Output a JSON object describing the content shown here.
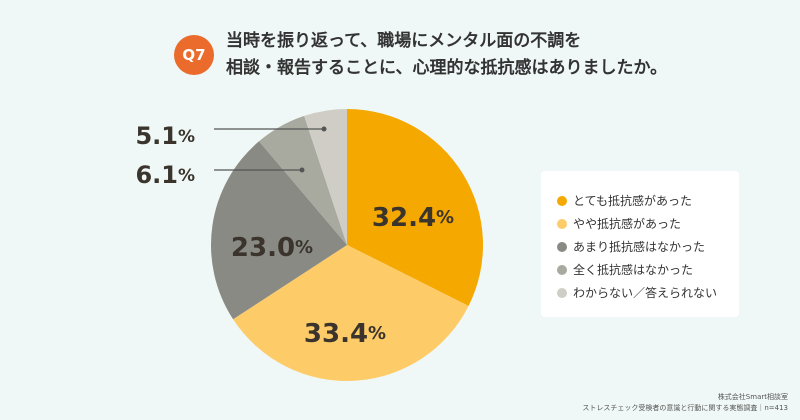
{
  "question": {
    "badge": "Q7",
    "line1": "当時を振り返って、職場にメンタル面の不調を",
    "line2": "相談・報告することに、心理的な抵抗感はありましたか。"
  },
  "chart_data": {
    "type": "pie",
    "title": "当時を振り返って、職場にメンタル面の不調を相談・報告することに、心理的な抵抗感はありましたか。",
    "slices": [
      {
        "label": "とても抵抗感があった",
        "value": 32.4,
        "color": "#f5a800"
      },
      {
        "label": "やや抵抗感があった",
        "value": 33.4,
        "color": "#fecb69"
      },
      {
        "label": "あまり抵抗感はなかった",
        "value": 23.0,
        "color": "#8a8a84"
      },
      {
        "label": "全く抵抗感はなかった",
        "value": 6.1,
        "color": "#a8a99f"
      },
      {
        "label": "わからない／答えられない",
        "value": 5.1,
        "color": "#cfcdc6"
      }
    ],
    "start_angle": "12 o'clock",
    "direction": "clockwise",
    "legend_position": "right"
  },
  "source": {
    "line1": "株式会社Smart相談室",
    "line2": "ストレスチェック受検者の意識と行動に関する実態調査｜n=413"
  }
}
